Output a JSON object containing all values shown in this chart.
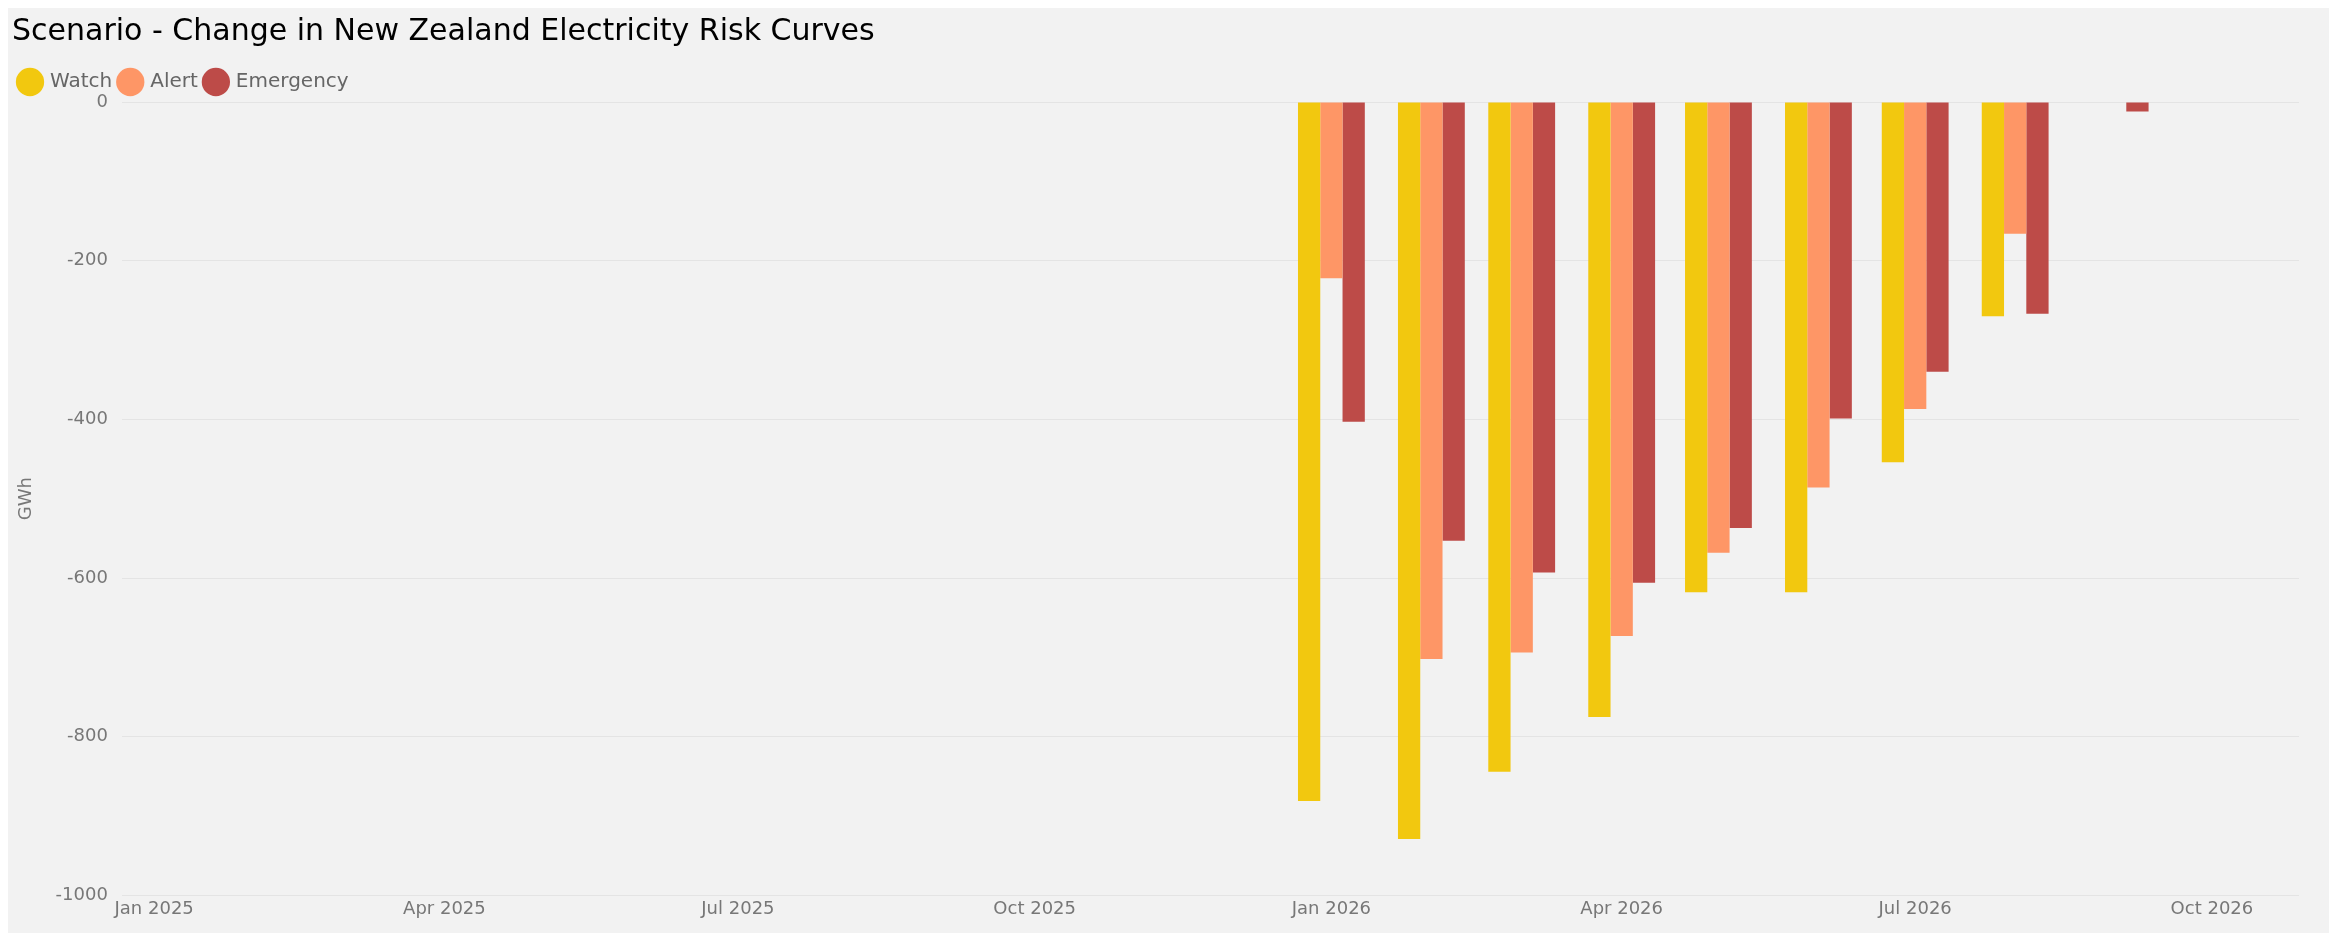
{
  "chart_data": {
    "type": "bar",
    "title": "Scenario - Change in New Zealand Electricity Risk Curves",
    "ylabel": "GWh",
    "x": [
      "2026-01",
      "2026-02",
      "2026-03",
      "2026-04",
      "2026-05",
      "2026-06",
      "2026-07",
      "2026-08",
      "2026-09"
    ],
    "series": [
      {
        "name": "Watch",
        "color": "#f2c80f",
        "values": [
          -881,
          -929,
          -844,
          -775,
          -618,
          -618,
          -454,
          -270,
          null
        ]
      },
      {
        "name": "Alert",
        "color": "#fe9666",
        "values": [
          -222,
          -702,
          -694,
          -673,
          -568,
          -486,
          -387,
          -166,
          null
        ]
      },
      {
        "name": "Emergency",
        "color": "#bd4b48",
        "values": [
          -403,
          -553,
          -593,
          -606,
          -537,
          -399,
          -340,
          -267,
          -12
        ]
      }
    ],
    "xlim": [
      "2024-12-22",
      "2026-10-28"
    ],
    "xticks": [
      {
        "value": "2025-01",
        "label": "Jan 2025"
      },
      {
        "value": "2025-04",
        "label": "Apr 2025"
      },
      {
        "value": "2025-07",
        "label": "Jul 2025"
      },
      {
        "value": "2025-10",
        "label": "Oct 2025"
      },
      {
        "value": "2026-01",
        "label": "Jan 2026"
      },
      {
        "value": "2026-04",
        "label": "Apr 2026"
      },
      {
        "value": "2026-07",
        "label": "Jul 2026"
      },
      {
        "value": "2026-10",
        "label": "Oct 2026"
      }
    ],
    "ylim": [
      -1000,
      0
    ],
    "yticks": [
      0,
      -200,
      -400,
      -600,
      -800,
      -1000
    ],
    "grid": "y",
    "legend": "top left"
  }
}
